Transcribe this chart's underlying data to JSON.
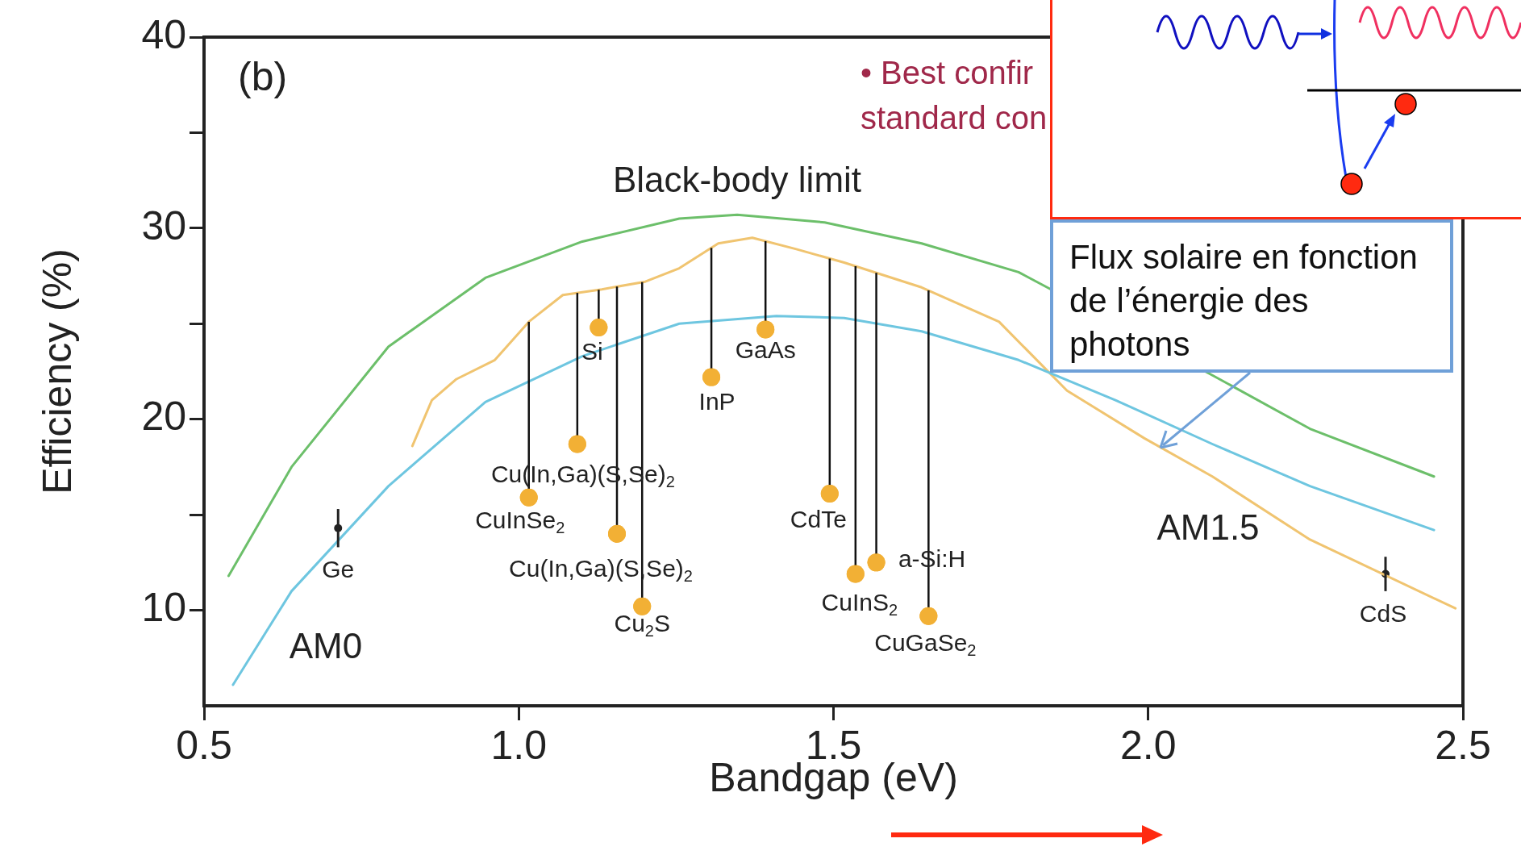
{
  "chart_data": {
    "type": "line",
    "xlabel": "Bandgap (eV)",
    "ylabel": "Efficiency (%)",
    "xlim": [
      0.5,
      2.5
    ],
    "ylim": [
      5,
      40
    ],
    "xticks": [
      0.5,
      {
        "value": 1,
        "label": "1.0"
      },
      1.5,
      {
        "value": 2,
        "label": "2.0"
      },
      2.5
    ],
    "yticks": [
      10,
      {
        "value": 15,
        "label": null
      },
      20,
      {
        "value": 25,
        "label": null
      },
      30,
      {
        "value": 35,
        "label": null
      },
      40
    ],
    "legend": false,
    "marker": "none",
    "series": [
      {
        "type": "line",
        "name": "Black-body limit",
        "color": "#6cbf6a",
        "x": [
          0.539,
          0.639,
          0.793,
          0.947,
          1.101,
          1.255,
          1.347,
          1.486,
          1.64,
          1.794,
          2.102,
          2.257,
          2.454
        ],
        "values": [
          11.8,
          17.5,
          23.8,
          27.4,
          29.3,
          30.5,
          30.7,
          30.3,
          29.2,
          27.7,
          22.3,
          19.5,
          17.0
        ]
      },
      {
        "type": "line",
        "name": "AM0",
        "color": "#6ec6e0",
        "x": [
          0.546,
          0.639,
          0.793,
          0.947,
          1.101,
          1.255,
          1.409,
          1.517,
          1.64,
          1.794,
          1.948,
          2.102,
          2.257,
          2.454
        ],
        "values": [
          6.1,
          11.0,
          16.5,
          20.9,
          23.3,
          25.0,
          25.4,
          25.3,
          24.6,
          23.1,
          21.0,
          18.7,
          16.5,
          14.2
        ]
      },
      {
        "type": "line",
        "name": "AM1.5",
        "color": "#f0c470",
        "x": [
          0.831,
          0.862,
          0.901,
          0.962,
          1.016,
          1.07,
          1.132,
          1.201,
          1.255,
          1.317,
          1.371,
          1.441,
          1.517,
          1.64,
          1.763,
          1.871,
          1.994,
          2.102,
          2.257,
          2.488
        ],
        "values": [
          18.6,
          21.0,
          22.1,
          23.1,
          25.1,
          26.5,
          26.8,
          27.2,
          27.9,
          29.2,
          29.5,
          28.9,
          28.2,
          26.9,
          25.1,
          21.5,
          19.0,
          17.0,
          13.7,
          10.1
        ]
      },
      {
        "type": "scatter",
        "color": "#f2b035",
        "marker": "circle",
        "x": [
          1.127,
          1.093,
          1.016,
          1.156,
          1.196,
          1.306,
          1.392,
          1.494,
          1.535,
          1.568,
          1.651
        ],
        "values": [
          24.8,
          18.7,
          15.9,
          14.0,
          10.2,
          22.2,
          24.7,
          16.1,
          11.9,
          12.5,
          9.7
        ]
      },
      {
        "type": "scatter",
        "color": "#222222",
        "marker": "circle",
        "x": [
          0.713,
          2.377
        ],
        "values": [
          14.3,
          11.9
        ],
        "errors": [
          1.0,
          0.9
        ]
      }
    ],
    "annotations": [
      "(b)",
      "• Best confir\nstandard con",
      {
        "text": "Si",
        "x": 1.127,
        "y": 24.8
      },
      {
        "text": "Cu(In,Ga)(S,Se)$_{2}$",
        "x": 1.093,
        "y": 18.7
      },
      {
        "text": "CuInSe$_{2}$",
        "x": 1.016,
        "y": 15.9
      },
      {
        "text": "Cu(In,Ga)(S,Se)$_{2}$",
        "x": 1.156,
        "y": 14.0
      },
      {
        "text": "Cu$_{2}$S",
        "x": 1.196,
        "y": 10.2
      },
      {
        "text": "InP",
        "x": 1.306,
        "y": 22.2
      },
      {
        "text": "GaAs",
        "x": 1.392,
        "y": 24.7
      },
      {
        "text": "CdTe",
        "x": 1.494,
        "y": 16.1
      },
      {
        "text": "CuInS$_{2}$",
        "x": 1.535,
        "y": 11.9
      },
      {
        "text": "a-Si:H",
        "x": 1.568,
        "y": 12.5
      },
      {
        "text": "CuGaSe$_{2}$",
        "x": 1.651,
        "y": 9.7
      },
      {
        "text": "Ge",
        "x": 0.713,
        "y": 14.3
      },
      {
        "text": "CdS",
        "x": 2.377,
        "y": 11.9
      },
      "Flux solaire en fonction de l’énergie des photons"
    ]
  }
}
